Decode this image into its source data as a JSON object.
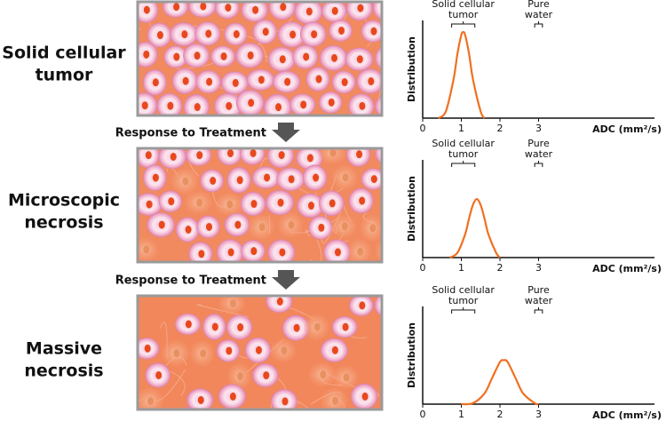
{
  "rows": [
    {
      "label": [
        "Solid cellular",
        "tumor"
      ]
    },
    {
      "label": [
        "Microscopic",
        "necrosis"
      ]
    },
    {
      "label": [
        "Massive",
        "necrosis"
      ]
    }
  ],
  "arrows": [
    "Response to Treatment",
    "Response to Treatment"
  ],
  "chart_data": [
    {
      "type": "line",
      "ylabel": "Distribution",
      "xlabel": "ADC (mm²/s)",
      "annotations": [
        {
          "text": [
            "Solid cellular",
            "tumor"
          ],
          "range": [
            0.75,
            1.35
          ]
        },
        {
          "text": [
            "Pure",
            "water"
          ],
          "range": [
            2.9,
            3.1
          ]
        }
      ],
      "xlim": [
        0,
        6
      ],
      "xticks": [
        0,
        1,
        2,
        3
      ],
      "ylim": [
        0,
        1
      ],
      "color": "#f07020",
      "x": [
        0.4,
        0.6,
        0.8,
        0.9,
        1.0,
        1.05,
        1.1,
        1.2,
        1.3,
        1.5,
        1.6
      ],
      "values": [
        0,
        0.07,
        0.4,
        0.66,
        0.85,
        0.88,
        0.85,
        0.66,
        0.4,
        0.07,
        0
      ]
    },
    {
      "type": "line",
      "ylabel": "Distribution",
      "xlabel": "ADC (mm²/s)",
      "annotations": [
        {
          "text": [
            "Solid cellular",
            "tumor"
          ],
          "range": [
            0.75,
            1.35
          ]
        },
        {
          "text": [
            "Pure",
            "water"
          ],
          "range": [
            2.9,
            3.1
          ]
        }
      ],
      "xlim": [
        0,
        6
      ],
      "xticks": [
        0,
        1,
        2,
        3
      ],
      "ylim": [
        0,
        1
      ],
      "color": "#f07020",
      "x": [
        0.7,
        0.9,
        1.1,
        1.2,
        1.3,
        1.4,
        1.5,
        1.6,
        1.7,
        1.9,
        2.0
      ],
      "values": [
        0,
        0.05,
        0.24,
        0.4,
        0.54,
        0.6,
        0.54,
        0.4,
        0.24,
        0.05,
        0
      ]
    },
    {
      "type": "line",
      "ylabel": "Distribution",
      "xlabel": "ADC (mm²/s)",
      "annotations": [
        {
          "text": [
            "Solid cellular",
            "tumor"
          ],
          "range": [
            0.75,
            1.35
          ]
        },
        {
          "text": [
            "Pure",
            "water"
          ],
          "range": [
            2.9,
            3.1
          ]
        }
      ],
      "xlim": [
        0,
        6
      ],
      "xticks": [
        0,
        1,
        2,
        3
      ],
      "ylim": [
        0,
        1
      ],
      "color": "#f07020",
      "x": [
        1.0,
        1.3,
        1.6,
        1.8,
        2.0,
        2.1,
        2.2,
        2.4,
        2.6,
        2.9,
        3.0
      ],
      "values": [
        0,
        0.01,
        0.11,
        0.27,
        0.43,
        0.45,
        0.43,
        0.27,
        0.11,
        0.01,
        0
      ]
    }
  ]
}
